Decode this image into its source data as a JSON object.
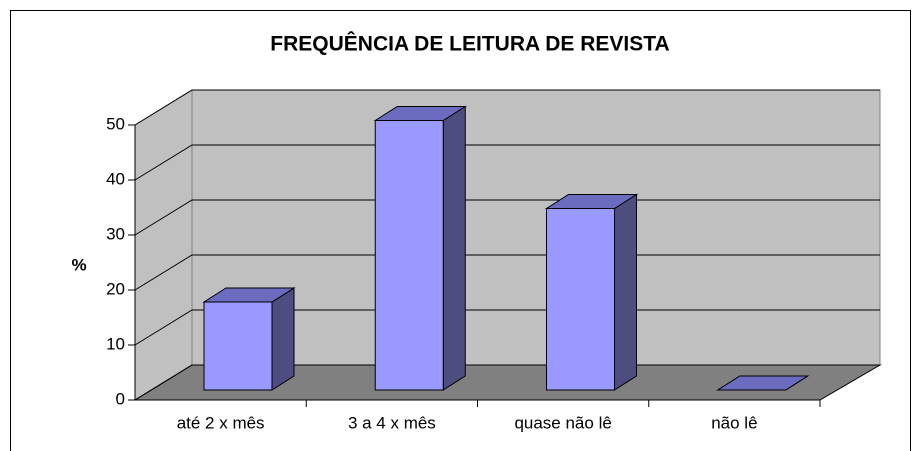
{
  "chart_data": {
    "type": "bar3d",
    "title": "FREQUÊNCIA DE LEITURA DE REVISTA",
    "y_label": "%",
    "categories": [
      "até 2 x mês",
      "3 a 4 x mês",
      "quase não lê",
      "não lê"
    ],
    "values": [
      16,
      49,
      33,
      0
    ],
    "color": "#9999ff",
    "ylim": [
      0,
      50
    ],
    "yticks": [
      0,
      10,
      20,
      30,
      40,
      50
    ],
    "grid": true
  }
}
